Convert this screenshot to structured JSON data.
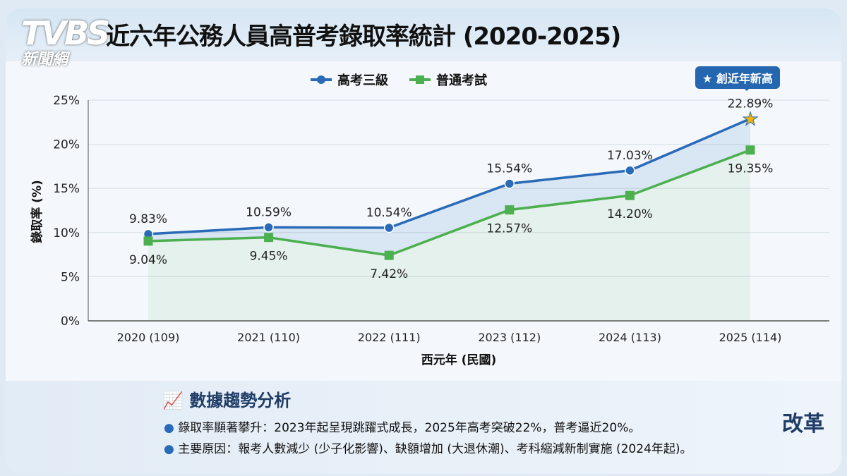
{
  "brand": {
    "logo_text": "TVBS",
    "logo_sub": "新聞網"
  },
  "title": "近六年公務人員高普考錄取率統計 (2020-2025)",
  "badge": "創近年新高",
  "analysis": {
    "heading": "數據趨勢分析",
    "bullets": [
      "錄取率顯著攀升：2023年起呈現跳躍式成長，2025年高考突破22%，普考逼近20%。",
      "主要原因：報考人數減少 (少子化影響)、缺額增加 (大退休潮)、考科縮減新制實施 (2024年起)。"
    ]
  },
  "reform_label": "改革",
  "chart_data": {
    "type": "line",
    "title": "近六年公務人員高普考錄取率統計 (2020-2025)",
    "xlabel": "西元年 (民國)",
    "ylabel": "錄取率 (%)",
    "categories": [
      "2020 (109)",
      "2021 (110)",
      "2022 (111)",
      "2023 (112)",
      "2024 (113)",
      "2025 (114)"
    ],
    "yticks": [
      "0%",
      "5%",
      "10%",
      "15%",
      "20%",
      "25%"
    ],
    "ylim": [
      0,
      25
    ],
    "grid": true,
    "legend_placement": "top",
    "series": [
      {
        "name": "高考三級",
        "values": [
          9.83,
          10.59,
          10.54,
          15.54,
          17.03,
          22.89
        ],
        "labels": [
          "9.83%",
          "10.59%",
          "10.54%",
          "15.54%",
          "17.03%",
          "22.89%"
        ],
        "color": "#2a6bb8"
      },
      {
        "name": "普通考試",
        "values": [
          9.04,
          9.45,
          7.42,
          12.57,
          14.2,
          19.35
        ],
        "labels": [
          "9.04%",
          "9.45%",
          "7.42%",
          "12.57%",
          "14.20%",
          "19.35%"
        ],
        "color": "#4caf50"
      }
    ]
  }
}
